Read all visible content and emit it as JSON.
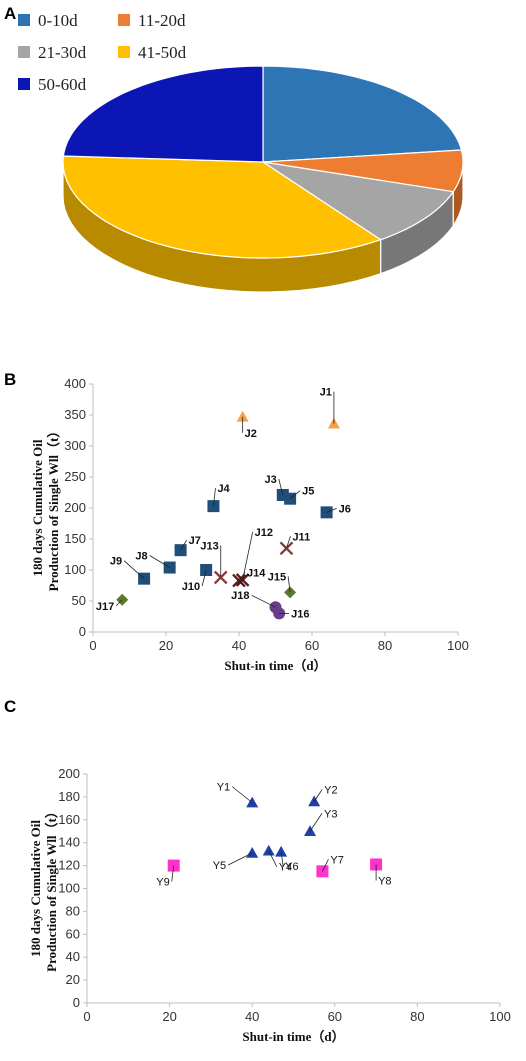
{
  "panels": {
    "a": "A",
    "b": "B",
    "c": "C"
  },
  "chart_data": [
    {
      "type": "pie",
      "title": "",
      "legend_position": "top-left",
      "categories": [
        "0-10d",
        "11-20d",
        "21-30d",
        "41-50d",
        "50-60d"
      ],
      "values": [
        23,
        7,
        10,
        36,
        24
      ],
      "colors": [
        "#2E75B6",
        "#ED7D31",
        "#A5A5A5",
        "#FFC000",
        "#0B16B4"
      ],
      "style": "3d"
    },
    {
      "type": "scatter",
      "title": "",
      "xlabel": "Shut-in time（d）",
      "ylabel": "180 days Cumulative Oil Production of Single Wll（t）",
      "ylabel_lines": [
        "180 days Cumulative Oil",
        "Production of Single Wll（t）"
      ],
      "xlim": [
        0,
        100
      ],
      "ylim": [
        0,
        400
      ],
      "xticks": [
        "0",
        "20",
        "40",
        "60",
        "80",
        "100"
      ],
      "yticks": [
        "0",
        "50",
        "100",
        "150",
        "200",
        "250",
        "300",
        "350",
        "400"
      ],
      "grid": false,
      "points": [
        {
          "label": "J1",
          "x": 66,
          "y": 336,
          "marker": "triangle",
          "color": "#F4A04A"
        },
        {
          "label": "J2",
          "x": 41,
          "y": 347,
          "marker": "triangle",
          "color": "#F4A04A"
        },
        {
          "label": "J3",
          "x": 52,
          "y": 221,
          "marker": "square",
          "color": "#1F4E79"
        },
        {
          "label": "J4",
          "x": 33,
          "y": 203,
          "marker": "square",
          "color": "#1F4E79"
        },
        {
          "label": "J5",
          "x": 54,
          "y": 215,
          "marker": "square",
          "color": "#1F4E79"
        },
        {
          "label": "J6",
          "x": 64,
          "y": 193,
          "marker": "square",
          "color": "#1F4E79"
        },
        {
          "label": "J7",
          "x": 24,
          "y": 132,
          "marker": "square",
          "color": "#1F4E79"
        },
        {
          "label": "J8",
          "x": 21,
          "y": 104,
          "marker": "square",
          "color": "#1F4E79"
        },
        {
          "label": "J9",
          "x": 14,
          "y": 86,
          "marker": "square",
          "color": "#1F4E79"
        },
        {
          "label": "J10",
          "x": 31,
          "y": 100,
          "marker": "square",
          "color": "#1F4E79"
        },
        {
          "label": "J11",
          "x": 53,
          "y": 135,
          "marker": "x",
          "color": "#8B3A3A"
        },
        {
          "label": "J12",
          "x": 41,
          "y": 84,
          "marker": "x",
          "color": "#5A1A1A"
        },
        {
          "label": "J13",
          "x": 35,
          "y": 88,
          "marker": "x",
          "color": "#8B3A3A"
        },
        {
          "label": "J14",
          "x": 40,
          "y": 83,
          "marker": "x",
          "color": "#5A1A1A"
        },
        {
          "label": "J15",
          "x": 54,
          "y": 64,
          "marker": "diamond",
          "color": "#5B7A2E"
        },
        {
          "label": "J16",
          "x": 51,
          "y": 30,
          "marker": "circle",
          "color": "#6A3D8A"
        },
        {
          "label": "J17",
          "x": 8,
          "y": 52,
          "marker": "diamond",
          "color": "#5B7A2E"
        },
        {
          "label": "J18",
          "x": 50,
          "y": 40,
          "marker": "circle",
          "color": "#6A3D8A"
        }
      ]
    },
    {
      "type": "scatter",
      "title": "",
      "xlabel": "Shut-in time（d）",
      "ylabel": "180 days Cumulative Oil Production of Single Wll（t）",
      "ylabel_lines": [
        "180 days Cumulative Oil",
        "Production of Single Wll（t）"
      ],
      "xlim": [
        0,
        100
      ],
      "ylim": [
        0,
        200
      ],
      "xticks": [
        "0",
        "20",
        "40",
        "60",
        "80",
        "100"
      ],
      "yticks": [
        "0",
        "20",
        "40",
        "60",
        "80",
        "100",
        "120",
        "140",
        "160",
        "180",
        "200"
      ],
      "grid": false,
      "points": [
        {
          "label": "Y1",
          "x": 40,
          "y": 175,
          "marker": "triangle",
          "color": "#1F3FA8"
        },
        {
          "label": "Y2",
          "x": 55,
          "y": 176,
          "marker": "triangle",
          "color": "#1F3FA8"
        },
        {
          "label": "Y3",
          "x": 54,
          "y": 150,
          "marker": "triangle",
          "color": "#1F3FA8"
        },
        {
          "label": "Y4",
          "x": 44,
          "y": 133,
          "marker": "triangle",
          "color": "#1F3FA8"
        },
        {
          "label": "Y5",
          "x": 40,
          "y": 131,
          "marker": "triangle",
          "color": "#1F3FA8"
        },
        {
          "label": "Y6",
          "x": 47,
          "y": 132,
          "marker": "triangle",
          "color": "#1F3FA8"
        },
        {
          "label": "Y7",
          "x": 57,
          "y": 115,
          "marker": "square",
          "color": "#FF33CC"
        },
        {
          "label": "Y8",
          "x": 70,
          "y": 121,
          "marker": "square",
          "color": "#FF33CC"
        },
        {
          "label": "Y9",
          "x": 21,
          "y": 120,
          "marker": "square",
          "color": "#FF33CC"
        }
      ]
    }
  ]
}
